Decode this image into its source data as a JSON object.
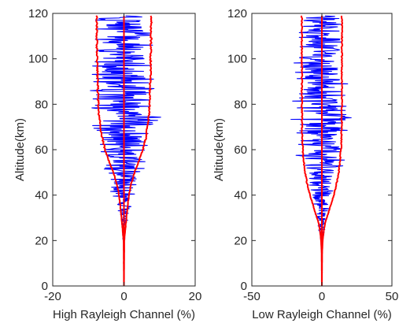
{
  "chart_data": [
    {
      "type": "line",
      "xlabel": "High Rayleigh Channel (%)",
      "ylabel": "Altitude(km)",
      "xlim": [
        -20,
        20
      ],
      "ylim": [
        0,
        120
      ],
      "xticks": [
        -20,
        0,
        20
      ],
      "yticks": [
        0,
        20,
        40,
        60,
        80,
        100,
        120
      ],
      "grid": false,
      "colors": {
        "noisy_profile": "#0000ff",
        "envelope": "#ff0000",
        "axes": "#262626"
      },
      "series": [
        {
          "color": "#0000ff",
          "style": "noisy",
          "altitude": [
            20,
            25,
            28,
            30,
            33,
            35,
            38,
            40,
            42,
            45,
            48,
            50,
            52,
            55,
            58,
            60,
            62,
            65,
            68,
            70,
            72,
            75,
            78,
            80,
            82,
            85,
            88,
            90,
            92,
            93,
            95,
            98,
            100,
            102,
            105,
            108,
            110,
            112,
            115,
            118,
            119
          ],
          "amplitude": [
            0.3,
            0.8,
            1.2,
            1.6,
            2.1,
            2.6,
            3.2,
            3.6,
            3.9,
            4.6,
            5.8,
            6.6,
            7.2,
            7.9,
            8.6,
            9.2,
            9.8,
            10.3,
            10.8,
            11.2,
            11.8,
            12.0,
            11.0,
            11.6,
            10.6,
            11.0,
            10.0,
            10.4,
            14.0,
            9.6,
            10.2,
            9.8,
            10.4,
            9.9,
            10.2,
            9.6,
            9.9,
            9.4,
            9.8,
            9.2,
            9.0
          ]
        },
        {
          "color": "#ff0000",
          "style": "envelope",
          "altitude": [
            0,
            20,
            25,
            30,
            35,
            40,
            45,
            50,
            55,
            60,
            65,
            70,
            75,
            80,
            85,
            90,
            95,
            100,
            105,
            110,
            115,
            119
          ],
          "x": [
            0,
            0.1,
            0.4,
            0.7,
            1.0,
            1.4,
            2.0,
            3.0,
            4.2,
            5.3,
            6.1,
            6.6,
            7.0,
            7.2,
            7.3,
            7.4,
            7.5,
            7.5,
            7.6,
            7.6,
            7.6,
            7.6
          ]
        }
      ]
    },
    {
      "type": "line",
      "xlabel": "Low Rayleigh Channel (%)",
      "ylabel": "Altitude(km)",
      "xlim": [
        -50,
        50
      ],
      "ylim": [
        0,
        120
      ],
      "xticks": [
        -50,
        0,
        50
      ],
      "yticks": [
        0,
        20,
        40,
        60,
        80,
        100,
        120
      ],
      "grid": false,
      "colors": {
        "noisy_profile": "#0000ff",
        "envelope": "#ff0000",
        "axes": "#262626"
      },
      "series": [
        {
          "color": "#0000ff",
          "style": "noisy",
          "altitude": [
            20,
            22,
            25,
            28,
            30,
            33,
            35,
            38,
            40,
            42,
            45,
            48,
            50,
            52,
            55,
            58,
            60,
            62,
            64,
            65,
            68,
            70,
            72,
            75,
            78,
            80,
            82,
            85,
            88,
            90,
            92,
            95,
            98,
            100,
            102,
            105,
            108,
            110,
            112,
            115,
            118,
            119
          ],
          "amplitude": [
            1.0,
            1.8,
            3.0,
            4.0,
            5.2,
            6.0,
            7.0,
            8.5,
            9.5,
            11.0,
            12.5,
            14.0,
            15.5,
            17.0,
            18.5,
            20.0,
            21.0,
            21.5,
            33.0,
            21.0,
            22.0,
            22.5,
            23.0,
            22.5,
            23.0,
            24.0,
            22.0,
            23.0,
            22.5,
            22.0,
            21.5,
            22.0,
            21.0,
            22.0,
            23.0,
            21.5,
            20.5,
            24.0,
            21.0,
            20.0,
            20.0,
            19.0
          ]
        },
        {
          "color": "#ff0000",
          "style": "envelope",
          "altitude": [
            0,
            15,
            20,
            25,
            28,
            30,
            35,
            40,
            45,
            50,
            55,
            60,
            65,
            70,
            80,
            90,
            100,
            110,
            119
          ],
          "x": [
            0,
            0.2,
            0.6,
            1.5,
            2.5,
            3.5,
            6.0,
            8.5,
            10.5,
            12.0,
            13.0,
            13.6,
            14.0,
            14.2,
            14.3,
            14.3,
            14.3,
            14.3,
            14.3
          ]
        }
      ]
    }
  ]
}
